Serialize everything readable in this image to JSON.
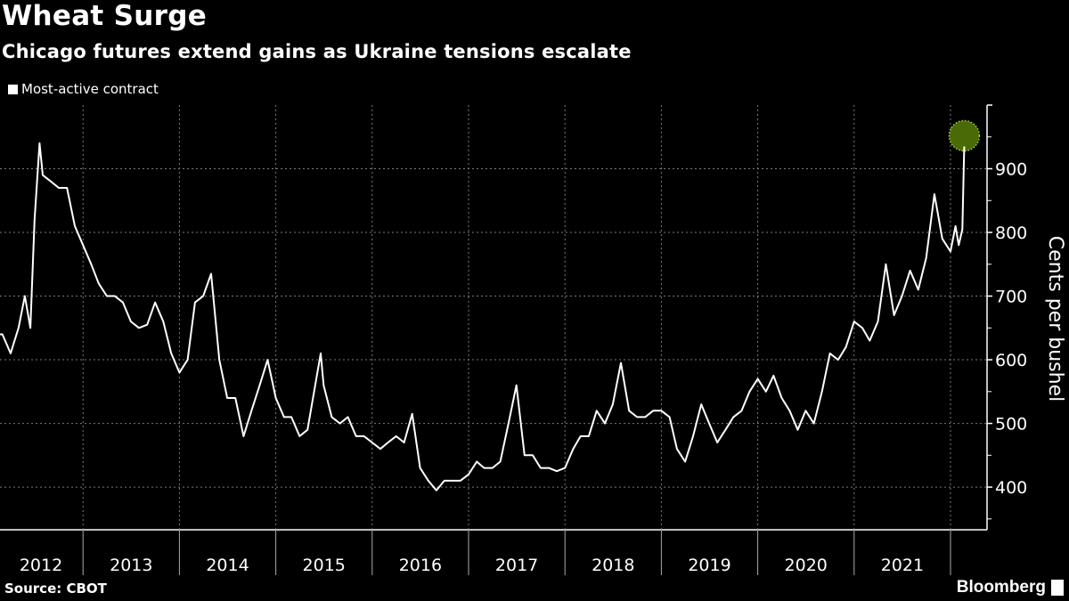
{
  "header": {
    "title": "Wheat Surge",
    "subtitle": "Chicago futures extend gains as Ukraine tensions escalate"
  },
  "footer": {
    "source": "Source: CBOT",
    "brand": "Bloomberg"
  },
  "colors": {
    "background": "#000000",
    "line": "#ffffff",
    "highlight_fill": "#4a6a08",
    "highlight_stroke": "#a8d42a",
    "grid": "#7a7a7a"
  },
  "chart_data": {
    "type": "line",
    "title": "Wheat Surge",
    "subtitle": "Chicago futures extend gains as Ukraine tensions escalate",
    "ylabel": "Cents per bushel",
    "xlabel": "",
    "ylim": [
      333,
      1000
    ],
    "y_ticks": [
      400,
      500,
      600,
      700,
      800,
      900
    ],
    "y_axis_side": "right",
    "x_ticks": [
      "2012",
      "2013",
      "2014",
      "2015",
      "2016",
      "2017",
      "2018",
      "2019",
      "2020",
      "2021"
    ],
    "grid": true,
    "legend_position": "top-left",
    "highlight": {
      "date": "2022-02-22",
      "value": 935,
      "marker": "green-circle"
    },
    "series": [
      {
        "name": "Most-active contract",
        "points": [
          [
            "2012-01-01",
            660
          ],
          [
            "2012-02-01",
            640
          ],
          [
            "2012-03-01",
            640
          ],
          [
            "2012-04-01",
            610
          ],
          [
            "2012-05-01",
            650
          ],
          [
            "2012-05-25",
            700
          ],
          [
            "2012-06-15",
            650
          ],
          [
            "2012-07-01",
            820
          ],
          [
            "2012-07-20",
            940
          ],
          [
            "2012-08-01",
            890
          ],
          [
            "2012-09-01",
            880
          ],
          [
            "2012-10-01",
            870
          ],
          [
            "2012-11-01",
            870
          ],
          [
            "2012-12-01",
            810
          ],
          [
            "2013-01-01",
            780
          ],
          [
            "2013-02-01",
            750
          ],
          [
            "2013-03-01",
            720
          ],
          [
            "2013-04-01",
            700
          ],
          [
            "2013-05-01",
            700
          ],
          [
            "2013-06-01",
            690
          ],
          [
            "2013-07-01",
            660
          ],
          [
            "2013-08-01",
            650
          ],
          [
            "2013-09-01",
            655
          ],
          [
            "2013-10-01",
            690
          ],
          [
            "2013-11-01",
            660
          ],
          [
            "2013-12-01",
            610
          ],
          [
            "2014-01-01",
            580
          ],
          [
            "2014-02-01",
            600
          ],
          [
            "2014-03-01",
            690
          ],
          [
            "2014-04-01",
            700
          ],
          [
            "2014-05-01",
            735
          ],
          [
            "2014-06-01",
            600
          ],
          [
            "2014-07-01",
            540
          ],
          [
            "2014-08-01",
            540
          ],
          [
            "2014-09-01",
            480
          ],
          [
            "2014-10-01",
            520
          ],
          [
            "2014-11-01",
            560
          ],
          [
            "2014-12-01",
            600
          ],
          [
            "2015-01-01",
            540
          ],
          [
            "2015-02-01",
            510
          ],
          [
            "2015-03-01",
            510
          ],
          [
            "2015-04-01",
            480
          ],
          [
            "2015-05-01",
            490
          ],
          [
            "2015-06-20",
            610
          ],
          [
            "2015-07-01",
            560
          ],
          [
            "2015-08-01",
            510
          ],
          [
            "2015-09-01",
            500
          ],
          [
            "2015-10-01",
            510
          ],
          [
            "2015-11-01",
            480
          ],
          [
            "2015-12-01",
            480
          ],
          [
            "2016-01-01",
            470
          ],
          [
            "2016-02-01",
            460
          ],
          [
            "2016-03-01",
            470
          ],
          [
            "2016-04-01",
            480
          ],
          [
            "2016-05-01",
            470
          ],
          [
            "2016-06-01",
            515
          ],
          [
            "2016-07-01",
            430
          ],
          [
            "2016-08-01",
            410
          ],
          [
            "2016-09-01",
            395
          ],
          [
            "2016-10-01",
            410
          ],
          [
            "2016-11-01",
            410
          ],
          [
            "2016-12-01",
            410
          ],
          [
            "2017-01-01",
            420
          ],
          [
            "2017-02-01",
            440
          ],
          [
            "2017-03-01",
            430
          ],
          [
            "2017-04-01",
            430
          ],
          [
            "2017-05-01",
            440
          ],
          [
            "2017-06-01",
            500
          ],
          [
            "2017-07-01",
            560
          ],
          [
            "2017-08-01",
            450
          ],
          [
            "2017-09-01",
            450
          ],
          [
            "2017-10-01",
            430
          ],
          [
            "2017-11-01",
            430
          ],
          [
            "2017-12-01",
            425
          ],
          [
            "2018-01-01",
            430
          ],
          [
            "2018-02-01",
            460
          ],
          [
            "2018-03-01",
            480
          ],
          [
            "2018-04-01",
            480
          ],
          [
            "2018-05-01",
            520
          ],
          [
            "2018-06-01",
            500
          ],
          [
            "2018-07-01",
            530
          ],
          [
            "2018-08-01",
            595
          ],
          [
            "2018-09-01",
            520
          ],
          [
            "2018-10-01",
            510
          ],
          [
            "2018-11-01",
            510
          ],
          [
            "2018-12-01",
            520
          ],
          [
            "2019-01-01",
            520
          ],
          [
            "2019-02-01",
            510
          ],
          [
            "2019-03-01",
            460
          ],
          [
            "2019-04-01",
            440
          ],
          [
            "2019-05-01",
            480
          ],
          [
            "2019-06-01",
            530
          ],
          [
            "2019-07-01",
            500
          ],
          [
            "2019-08-01",
            470
          ],
          [
            "2019-09-01",
            490
          ],
          [
            "2019-10-01",
            510
          ],
          [
            "2019-11-01",
            520
          ],
          [
            "2019-12-01",
            550
          ],
          [
            "2020-01-01",
            570
          ],
          [
            "2020-02-01",
            550
          ],
          [
            "2020-03-01",
            575
          ],
          [
            "2020-04-01",
            540
          ],
          [
            "2020-05-01",
            520
          ],
          [
            "2020-06-01",
            490
          ],
          [
            "2020-07-01",
            520
          ],
          [
            "2020-08-01",
            500
          ],
          [
            "2020-09-01",
            550
          ],
          [
            "2020-10-01",
            610
          ],
          [
            "2020-11-01",
            600
          ],
          [
            "2020-12-01",
            620
          ],
          [
            "2021-01-01",
            660
          ],
          [
            "2021-02-01",
            650
          ],
          [
            "2021-03-01",
            630
          ],
          [
            "2021-04-01",
            660
          ],
          [
            "2021-05-01",
            750
          ],
          [
            "2021-06-01",
            670
          ],
          [
            "2021-07-01",
            700
          ],
          [
            "2021-08-01",
            740
          ],
          [
            "2021-09-01",
            710
          ],
          [
            "2021-10-01",
            760
          ],
          [
            "2021-11-01",
            860
          ],
          [
            "2021-12-01",
            790
          ],
          [
            "2022-01-01",
            770
          ],
          [
            "2022-01-20",
            810
          ],
          [
            "2022-02-01",
            780
          ],
          [
            "2022-02-15",
            805
          ],
          [
            "2022-02-22",
            935
          ]
        ]
      }
    ]
  }
}
